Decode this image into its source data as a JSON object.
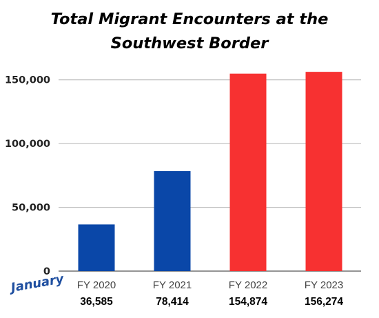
{
  "title_line1": "Total Migrant Encounters at the",
  "title_line2": "Southwest Border",
  "month_label": "January",
  "chart_data": {
    "type": "bar",
    "title": "Total Migrant Encounters at the Southwest Border",
    "xlabel": "",
    "ylabel": "",
    "categories": [
      "FY 2020",
      "FY 2021",
      "FY 2022",
      "FY 2023"
    ],
    "values": [
      36585,
      78414,
      154874,
      156274
    ],
    "value_labels": [
      "36,585",
      "78,414",
      "154,874",
      "156,274"
    ],
    "bar_colors": [
      "#0a47a8",
      "#0a47a8",
      "#f73131",
      "#f73131"
    ],
    "ylim": [
      0,
      165000
    ],
    "yticks": [
      0,
      50000,
      100000,
      150000
    ],
    "ytick_labels": [
      "0",
      "50,000",
      "100,000",
      "150,000"
    ],
    "grid": true,
    "legend": "none"
  },
  "colors": {
    "blue": "#0a47a8",
    "red": "#f73131",
    "grid": "#b4b4b4",
    "month_label": "#1f4fa0"
  }
}
